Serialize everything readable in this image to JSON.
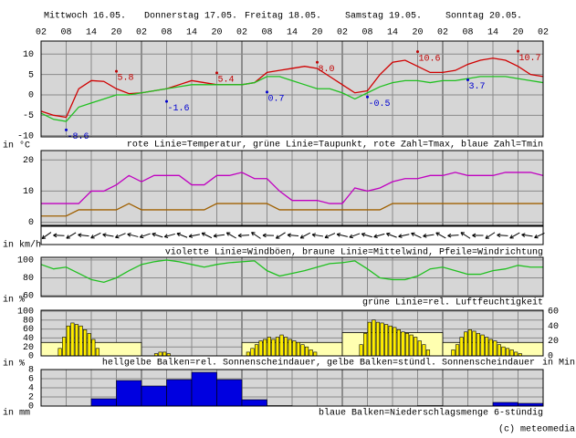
{
  "header": {
    "days": [
      "Mittwoch 16.05.",
      "Donnerstag 17.05.",
      "Freitag 18.05.",
      "Samstag 19.05.",
      "Sonntag 20.05."
    ],
    "hours": [
      "02",
      "08",
      "14",
      "20",
      "02",
      "08",
      "14",
      "20",
      "02",
      "08",
      "14",
      "20",
      "02",
      "08",
      "14",
      "20",
      "02",
      "08",
      "14",
      "20",
      "02"
    ]
  },
  "chart_data": [
    {
      "type": "line",
      "unit": "in °C",
      "caption": "rote Linie=Temperatur, grüne Linie=Taupunkt, rote Zahl=Tmax, blaue Zahl=Tmin",
      "xlim": [
        0,
        120
      ],
      "ylim": [
        -10.3,
        13.2
      ],
      "yticks": [
        -10,
        -5,
        0,
        5,
        10
      ],
      "grid": true,
      "x": [
        0,
        3,
        6,
        9,
        12,
        15,
        18,
        21,
        24,
        27,
        30,
        33,
        36,
        39,
        42,
        45,
        48,
        51,
        54,
        57,
        60,
        63,
        66,
        69,
        72,
        75,
        78,
        81,
        84,
        87,
        90,
        93,
        96,
        99,
        102,
        105,
        108,
        111,
        114,
        117,
        120
      ],
      "series": [
        {
          "color": "#d00000",
          "values": [
            -4,
            -5,
            -5.5,
            1.5,
            3.5,
            3.3,
            1.5,
            0.3,
            0.5,
            1,
            1.5,
            2.5,
            3.5,
            3,
            2.5,
            2.5,
            2.5,
            3,
            5.5,
            6,
            6.5,
            7,
            6.5,
            4.5,
            2.5,
            0.5,
            1,
            5,
            8,
            8.5,
            7,
            5.5,
            5.5,
            6,
            7.5,
            8.5,
            9,
            8.5,
            7,
            5,
            4.5
          ]
        },
        {
          "color": "#20c020",
          "values": [
            -4.5,
            -6,
            -6.5,
            -3,
            -2,
            -1,
            0,
            0,
            0.5,
            1,
            1.5,
            2,
            2.5,
            2.5,
            2.5,
            2.5,
            2.5,
            3,
            4.5,
            4.5,
            3.5,
            2.5,
            1.5,
            1.5,
            0.5,
            -1,
            0.5,
            2,
            3,
            3.5,
            3.5,
            3,
            3.5,
            3.5,
            4,
            4.5,
            4.5,
            4.5,
            4,
            3.5,
            3
          ]
        }
      ],
      "tmax": {
        "color": "#c00000",
        "points": [
          {
            "x": 18,
            "value": 5.8,
            "label": "5.8"
          },
          {
            "x": 42,
            "value": 5.4,
            "label": "5.4"
          },
          {
            "x": 66,
            "value": 8,
            "label": "8.0"
          },
          {
            "x": 90,
            "value": 10.6,
            "label": "10.6"
          },
          {
            "x": 114,
            "value": 10.7,
            "label": "10.7"
          }
        ]
      },
      "tmin": {
        "color": "#0000d0",
        "points": [
          {
            "x": 6,
            "value": -8.6,
            "label": "-8.6"
          },
          {
            "x": 30,
            "value": -1.6,
            "label": "-1.6"
          },
          {
            "x": 54,
            "value": 0.7,
            "label": "0.7"
          },
          {
            "x": 78,
            "value": -0.5,
            "label": "-0.5"
          },
          {
            "x": 102,
            "value": 3.7,
            "label": "3.7"
          }
        ]
      }
    },
    {
      "type": "line",
      "unit": "in km/h",
      "caption": "violette Linie=Windböen, braune Linie=Mittelwind, Pfeile=Windrichtung",
      "xlim": [
        0,
        120
      ],
      "ylim": [
        -1,
        23
      ],
      "yticks": [
        0,
        10,
        20
      ],
      "grid": true,
      "x": [
        0,
        3,
        6,
        9,
        12,
        15,
        18,
        21,
        24,
        27,
        30,
        33,
        36,
        39,
        42,
        45,
        48,
        51,
        54,
        57,
        60,
        63,
        66,
        69,
        72,
        75,
        78,
        81,
        84,
        87,
        90,
        93,
        96,
        99,
        102,
        105,
        108,
        111,
        114,
        117,
        120
      ],
      "series": [
        {
          "color": "#c000c0",
          "values": [
            6,
            6,
            6,
            6,
            10,
            10,
            12,
            15,
            13,
            15,
            15,
            15,
            12,
            12,
            15,
            15,
            16,
            14,
            14,
            10,
            7,
            7,
            7,
            6,
            6,
            11,
            10,
            11,
            13,
            14,
            14,
            15,
            15,
            16,
            15,
            15,
            15,
            16,
            16,
            16,
            15
          ]
        },
        {
          "color": "#a06000",
          "values": [
            2,
            2,
            2,
            4,
            4,
            4,
            4,
            6,
            4,
            4,
            4,
            4,
            4,
            4,
            6,
            6,
            6,
            6,
            6,
            4,
            4,
            4,
            4,
            4,
            4,
            4,
            4,
            4,
            6,
            6,
            6,
            6,
            6,
            6,
            6,
            6,
            6,
            6,
            6,
            6,
            6
          ]
        }
      ]
    },
    {
      "type": "line",
      "unit": "in %",
      "caption": "grüne Linie=rel. Luftfeuchtigkeit",
      "xlim": [
        0,
        120
      ],
      "ylim": [
        59,
        103
      ],
      "yticks": [
        60,
        80,
        100
      ],
      "grid": true,
      "x": [
        0,
        3,
        6,
        9,
        12,
        15,
        18,
        21,
        24,
        27,
        30,
        33,
        36,
        39,
        42,
        45,
        48,
        51,
        54,
        57,
        60,
        63,
        66,
        69,
        72,
        75,
        78,
        81,
        84,
        87,
        90,
        93,
        96,
        99,
        102,
        105,
        108,
        111,
        114,
        117,
        120
      ],
      "series": [
        {
          "color": "#20c020",
          "values": [
            95,
            90,
            92,
            85,
            78,
            75,
            80,
            88,
            95,
            98,
            100,
            98,
            95,
            92,
            95,
            97,
            98,
            99,
            88,
            82,
            85,
            88,
            92,
            96,
            97,
            99,
            90,
            80,
            78,
            78,
            82,
            90,
            92,
            88,
            84,
            84,
            88,
            90,
            94,
            92,
            92
          ]
        }
      ]
    },
    {
      "type": "bar",
      "unit": "in %",
      "caption": "hellgelbe Balken=rel. Sonnenscheindauer, gelbe Balken=stündl. Sonnenscheindauer",
      "unit_right": "in Min",
      "xlim": [
        0,
        120
      ],
      "ylim": [
        0,
        102
      ],
      "yticks": [
        0,
        20,
        40,
        60,
        80,
        100
      ],
      "y2lim": [
        0,
        61
      ],
      "y2ticks": [
        0,
        20,
        40,
        60
      ],
      "grid": true,
      "daily": {
        "color": "#ffffb0",
        "values": [
          30,
          0,
          30,
          52,
          30
        ]
      },
      "hourly": {
        "color": "#ffee00",
        "axis": "y2",
        "values": [
          0,
          0,
          0,
          0,
          10,
          25,
          40,
          44,
          42,
          40,
          35,
          30,
          22,
          10,
          0,
          0,
          0,
          0,
          0,
          0,
          0,
          0,
          0,
          0,
          0,
          0,
          0,
          3,
          5,
          5,
          3,
          0,
          0,
          0,
          0,
          0,
          0,
          0,
          0,
          0,
          0,
          0,
          0,
          0,
          0,
          0,
          0,
          0,
          0,
          5,
          10,
          15,
          20,
          22,
          25,
          22,
          25,
          28,
          25,
          22,
          20,
          18,
          15,
          12,
          8,
          5,
          0,
          0,
          0,
          0,
          0,
          0,
          0,
          0,
          0,
          0,
          15,
          30,
          45,
          48,
          45,
          44,
          42,
          40,
          38,
          35,
          32,
          30,
          28,
          25,
          20,
          15,
          8,
          0,
          0,
          0,
          0,
          0,
          8,
          15,
          25,
          32,
          35,
          33,
          30,
          28,
          25,
          22,
          20,
          15,
          12,
          10,
          8,
          5,
          3,
          0,
          0,
          0,
          0,
          0
        ]
      }
    },
    {
      "type": "bar",
      "unit": "in mm",
      "caption": "blaue Balken=Niederschlagsmenge 6-stündig",
      "xlim": [
        0,
        120
      ],
      "ylim": [
        0,
        8
      ],
      "yticks": [
        0,
        2,
        4,
        6,
        8
      ],
      "grid": true,
      "color": "#0000e0",
      "values": [
        0,
        0,
        1.6,
        5.6,
        4.4,
        5.8,
        7.4,
        5.8,
        1.4,
        0.1,
        0,
        0,
        0,
        0,
        0,
        0.1,
        0,
        0,
        0.8,
        0.6
      ]
    }
  ],
  "footer": "(c) meteomedia"
}
